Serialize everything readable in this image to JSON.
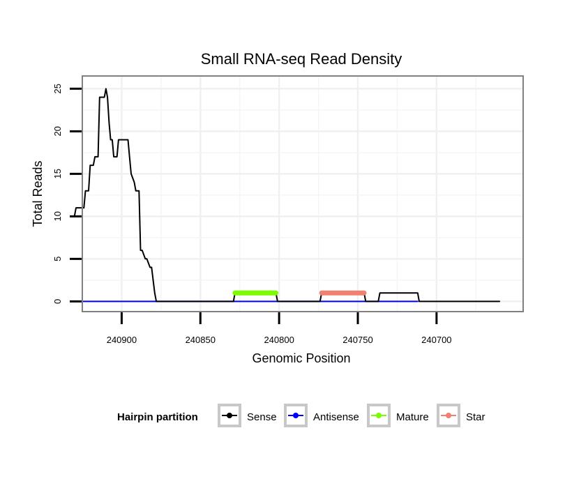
{
  "chart_data": {
    "type": "line",
    "title": "Small RNA-seq Read Density",
    "xlabel": "Genomic Position",
    "ylabel": "Total Reads",
    "x_reversed": true,
    "xlim": [
      240925,
      240645
    ],
    "ylim": [
      -1.2,
      26.5
    ],
    "x_ticks": [
      240900,
      240850,
      240800,
      240750,
      240700
    ],
    "x_tick_labels": [
      "240900",
      "240850",
      "240800",
      "240750",
      "240700"
    ],
    "y_ticks": [
      0,
      5,
      10,
      15,
      20,
      25
    ],
    "y_tick_labels": [
      "0",
      "5",
      "10",
      "15",
      "20",
      "25"
    ],
    "grid": true,
    "legend": {
      "title": "Hairpin partition",
      "position": "bottom",
      "entries": [
        "Sense",
        "Antisense",
        "Mature",
        "Star"
      ]
    },
    "series": [
      {
        "name": "Sense",
        "color": "#000000",
        "x": [
          240930,
          240929,
          240924,
          240923,
          240921,
          240920,
          240918,
          240917,
          240915,
          240914,
          240911,
          240910,
          240909,
          240908,
          240907,
          240906,
          240905,
          240904,
          240903,
          240902,
          240901,
          240899,
          240898,
          240897,
          240896,
          240895,
          240894,
          240892,
          240891,
          240889,
          240888,
          240887,
          240885,
          240884,
          240882,
          240881,
          240879,
          240878,
          240877,
          240876,
          240875,
          240874,
          240873,
          240872,
          240868,
          240867,
          240865,
          240864,
          240829,
          240828,
          240802,
          240801,
          240774,
          240773,
          240746,
          240745,
          240737,
          240736,
          240712,
          240711,
          240660
        ],
        "y": [
          10,
          11,
          11,
          13,
          13,
          16,
          16,
          17,
          17,
          24,
          24,
          25,
          24,
          21,
          19,
          19,
          17,
          17,
          17,
          19,
          19,
          19,
          19,
          19,
          19,
          17,
          15,
          14,
          13,
          13,
          6,
          6,
          5,
          5,
          4,
          4,
          1,
          0,
          0,
          0,
          0,
          0,
          0,
          0,
          0,
          0,
          0,
          0,
          0,
          1,
          1,
          0,
          0,
          1,
          1,
          0,
          0,
          1,
          1,
          0,
          0
        ]
      },
      {
        "name": "Antisense",
        "color": "#0000ff",
        "x": [
          240930,
          240712
        ],
        "y": [
          0,
          0
        ]
      },
      {
        "name": "Mature",
        "color": "#7cfc00",
        "x": [
          240828,
          240802
        ],
        "y": [
          1,
          1
        ]
      },
      {
        "name": "Star",
        "color": "#f08070",
        "x": [
          240773,
          240746
        ],
        "y": [
          1,
          1
        ]
      }
    ]
  }
}
